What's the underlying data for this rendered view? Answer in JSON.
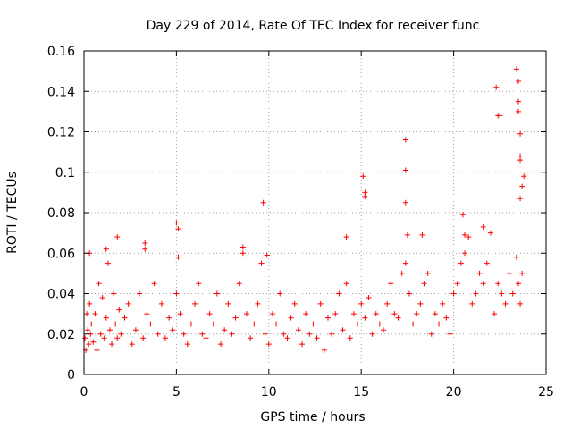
{
  "chart_data": {
    "type": "scatter",
    "title": "Day 229 of 2014, Rate Of TEC Index for receiver func",
    "xlabel": "GPS time / hours",
    "ylabel": "ROTI / TECUs",
    "xlim": [
      0,
      25
    ],
    "ylim": [
      0,
      0.16
    ],
    "grid": true,
    "marker": "+",
    "series_color": "#ff0000",
    "axis_color": "#000000",
    "grid_color": "#a0a0a0",
    "x_ticks": [
      {
        "value": 0,
        "label": "0"
      },
      {
        "value": 5,
        "label": "5"
      },
      {
        "value": 10,
        "label": "10"
      },
      {
        "value": 15,
        "label": "15"
      },
      {
        "value": 20,
        "label": "20"
      },
      {
        "value": 25,
        "label": "25"
      }
    ],
    "y_ticks": [
      {
        "value": 0,
        "label": "0"
      },
      {
        "value": 0.02,
        "label": "0.02"
      },
      {
        "value": 0.04,
        "label": "0.04"
      },
      {
        "value": 0.06,
        "label": "0.06"
      },
      {
        "value": 0.08,
        "label": "0.08"
      },
      {
        "value": 0.1,
        "label": "0.1"
      },
      {
        "value": 0.12,
        "label": "0.12"
      },
      {
        "value": 0.14,
        "label": "0.14"
      },
      {
        "value": 0.16,
        "label": "0.16"
      }
    ],
    "series": [
      {
        "name": "ROTI",
        "x": [
          0.05,
          0.1,
          0.15,
          0.2,
          0.25,
          0.3,
          0.35,
          0.4,
          0.5,
          0.6,
          0.7,
          0.8,
          0.9,
          1.0,
          1.1,
          1.2,
          1.3,
          1.4,
          1.5,
          1.6,
          1.7,
          1.8,
          1.9,
          2.0,
          2.2,
          2.4,
          2.6,
          2.8,
          3.0,
          3.2,
          3.3,
          3.4,
          3.6,
          3.8,
          4.0,
          4.2,
          4.4,
          4.6,
          4.8,
          5.0,
          5.1,
          5.2,
          5.4,
          5.6,
          5.8,
          6.0,
          6.2,
          6.4,
          6.6,
          6.8,
          7.0,
          7.2,
          7.4,
          7.6,
          7.8,
          8.0,
          8.2,
          8.4,
          8.6,
          8.8,
          9.0,
          9.2,
          9.4,
          9.6,
          9.8,
          10.0,
          10.2,
          10.4,
          10.6,
          10.8,
          11.0,
          11.2,
          11.4,
          11.6,
          11.8,
          12.0,
          12.2,
          12.4,
          12.6,
          12.8,
          13.0,
          13.2,
          13.4,
          13.6,
          13.8,
          14.0,
          14.2,
          14.4,
          14.6,
          14.8,
          15.0,
          15.2,
          15.4,
          15.6,
          15.8,
          16.0,
          16.2,
          16.4,
          16.6,
          16.8,
          17.0,
          17.2,
          17.4,
          17.6,
          17.8,
          18.0,
          18.2,
          18.4,
          18.6,
          18.8,
          19.0,
          19.2,
          19.4,
          19.6,
          19.8,
          20.0,
          20.2,
          20.4,
          20.6,
          20.8,
          21.0,
          21.2,
          21.4,
          21.6,
          21.8,
          22.0,
          22.2,
          22.4,
          22.6,
          22.8,
          23.0,
          23.2,
          23.4,
          23.5,
          23.6,
          23.7,
          0.3,
          1.2,
          1.8,
          3.3,
          5.0,
          5.1,
          8.6,
          9.7,
          9.9,
          14.2,
          15.1,
          15.2,
          15.2,
          17.4,
          17.4,
          17.4,
          17.5,
          18.3,
          20.5,
          20.6,
          21.6,
          22.3,
          22.4,
          22.5,
          23.4,
          23.5,
          23.5,
          23.5,
          23.6,
          23.6,
          23.6,
          23.7,
          23.6,
          23.8
        ],
        "y": [
          0.018,
          0.012,
          0.03,
          0.022,
          0.015,
          0.035,
          0.02,
          0.025,
          0.016,
          0.03,
          0.012,
          0.045,
          0.02,
          0.038,
          0.018,
          0.028,
          0.055,
          0.022,
          0.015,
          0.04,
          0.025,
          0.018,
          0.032,
          0.02,
          0.028,
          0.035,
          0.015,
          0.022,
          0.04,
          0.018,
          0.065,
          0.03,
          0.025,
          0.045,
          0.02,
          0.035,
          0.018,
          0.028,
          0.022,
          0.04,
          0.058,
          0.03,
          0.02,
          0.015,
          0.025,
          0.035,
          0.045,
          0.02,
          0.018,
          0.03,
          0.025,
          0.04,
          0.015,
          0.022,
          0.035,
          0.02,
          0.028,
          0.045,
          0.06,
          0.03,
          0.018,
          0.025,
          0.035,
          0.055,
          0.02,
          0.015,
          0.03,
          0.025,
          0.04,
          0.02,
          0.018,
          0.028,
          0.035,
          0.022,
          0.015,
          0.03,
          0.02,
          0.025,
          0.018,
          0.035,
          0.012,
          0.028,
          0.02,
          0.03,
          0.04,
          0.022,
          0.045,
          0.018,
          0.03,
          0.025,
          0.035,
          0.028,
          0.038,
          0.02,
          0.03,
          0.025,
          0.022,
          0.035,
          0.045,
          0.03,
          0.028,
          0.05,
          0.055,
          0.04,
          0.025,
          0.03,
          0.035,
          0.045,
          0.05,
          0.02,
          0.03,
          0.025,
          0.035,
          0.028,
          0.02,
          0.04,
          0.045,
          0.055,
          0.06,
          0.068,
          0.035,
          0.04,
          0.05,
          0.045,
          0.055,
          0.07,
          0.03,
          0.045,
          0.04,
          0.035,
          0.05,
          0.04,
          0.058,
          0.045,
          0.035,
          0.05,
          0.06,
          0.062,
          0.068,
          0.062,
          0.075,
          0.072,
          0.063,
          0.085,
          0.059,
          0.068,
          0.098,
          0.09,
          0.088,
          0.116,
          0.101,
          0.085,
          0.069,
          0.069,
          0.079,
          0.069,
          0.073,
          0.142,
          0.128,
          0.128,
          0.151,
          0.145,
          0.135,
          0.13,
          0.119,
          0.108,
          0.106,
          0.093,
          0.087,
          0.098
        ]
      }
    ]
  }
}
